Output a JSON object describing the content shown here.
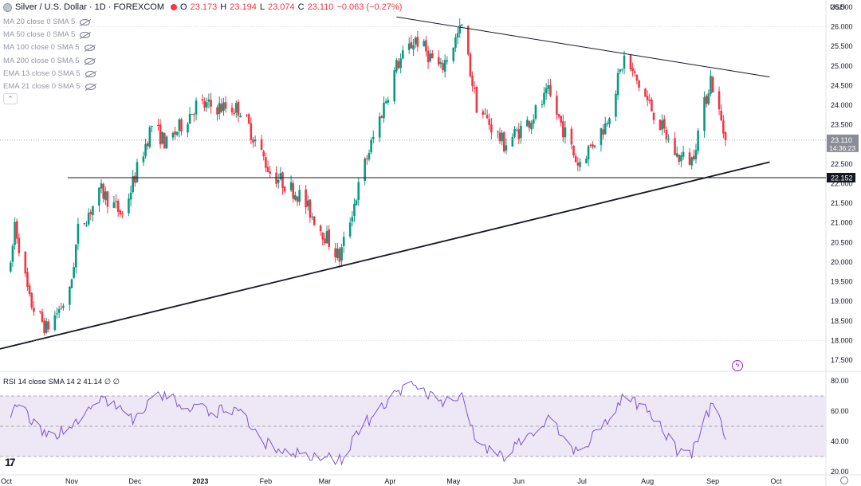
{
  "header": {
    "symbol": "Silver / U.S. Dollar · 1D · FOREXCOM",
    "open_key": "O",
    "open": "23.173",
    "high_key": "H",
    "high": "23.194",
    "low_key": "L",
    "low": "23.074",
    "close_key": "C",
    "close": "23.110",
    "change": "−0.063 (−0.27%)"
  },
  "indicators": [
    "MA 20 close 0 SMA 5",
    "MA 50 close 0 SMA 5",
    "MA 100 close 0 SMA 5",
    "MA 200 close 0 SMA 5",
    "EMA 13 close 0 SMA 5",
    "EMA 21 close 0 SMA 5"
  ],
  "rsi_legend": "RSI 14 close SMA 14 2  41.14 ∅ ∅",
  "currency": "USD",
  "collapse_label": "⌃",
  "logo": "17",
  "colors": {
    "up": "#089981",
    "down": "#f23645",
    "rsi_line": "#7e57c2",
    "rsi_band": "#ede7f6",
    "current_price_bg": "#8a8d96",
    "support_bg": "#131722"
  },
  "chart_data": {
    "type": "candlestick",
    "price_axis": {
      "min": 17.5,
      "max": 26.5,
      "ticks": [
        "26.500",
        "26.000",
        "25.500",
        "25.000",
        "24.500",
        "24.000",
        "23.500",
        "23.000",
        "22.500",
        "22.000",
        "21.500",
        "21.000",
        "20.500",
        "20.000",
        "19.500",
        "19.000",
        "18.500",
        "18.000",
        "17.500"
      ]
    },
    "current_price": {
      "value": "23.110",
      "countdown": "14:36:23"
    },
    "support_level": {
      "value": 22.152,
      "label": "22.152"
    },
    "x_axis_labels": [
      "Oct",
      "Nov",
      "Dec",
      "2023",
      "Feb",
      "Mar",
      "Apr",
      "May",
      "Jun",
      "Jul",
      "Aug",
      "Sep",
      "Oct"
    ],
    "trendlines": [
      {
        "name": "resistance",
        "from": [
          "2023-04-04",
          26.25
        ],
        "to": [
          "2023-09-28",
          24.72
        ]
      },
      {
        "name": "rising-support",
        "from": [
          "2022-09-29",
          17.8
        ],
        "to": [
          "2023-09-28",
          22.55
        ]
      }
    ],
    "rsi": {
      "period": 14,
      "axis_ticks": [
        "80.00",
        "60.00",
        "40.00",
        "20.00"
      ],
      "upper_band": 70,
      "middle": 50,
      "lower_band": 30,
      "last": 41.14
    },
    "series_anchors": [
      [
        "2022-10-03",
        19.8
      ],
      [
        "2022-10-05",
        21.0
      ],
      [
        "2022-10-12",
        19.0
      ],
      [
        "2022-10-20",
        18.3
      ],
      [
        "2022-10-31",
        19.2
      ],
      [
        "2022-11-04",
        20.8
      ],
      [
        "2022-11-15",
        21.8
      ],
      [
        "2022-11-25",
        21.2
      ],
      [
        "2022-12-09",
        23.5
      ],
      [
        "2022-12-16",
        23.0
      ],
      [
        "2022-12-30",
        24.0
      ],
      [
        "2023-01-20",
        23.9
      ],
      [
        "2023-02-03",
        22.3
      ],
      [
        "2023-02-17",
        21.7
      ],
      [
        "2023-03-08",
        20.1
      ],
      [
        "2023-03-20",
        22.5
      ],
      [
        "2023-04-04",
        25.0
      ],
      [
        "2023-04-13",
        25.7
      ],
      [
        "2023-04-25",
        24.9
      ],
      [
        "2023-05-05",
        26.0
      ],
      [
        "2023-05-12",
        24.0
      ],
      [
        "2023-05-25",
        23.0
      ],
      [
        "2023-06-06",
        23.6
      ],
      [
        "2023-06-15",
        24.3
      ],
      [
        "2023-06-29",
        22.5
      ],
      [
        "2023-07-12",
        23.5
      ],
      [
        "2023-07-21",
        25.2
      ],
      [
        "2023-08-01",
        24.1
      ],
      [
        "2023-08-15",
        22.7
      ],
      [
        "2023-08-22",
        22.6
      ],
      [
        "2023-08-31",
        24.7
      ],
      [
        "2023-09-07",
        23.11
      ]
    ],
    "rsi_anchors": [
      [
        "2022-10-03",
        60
      ],
      [
        "2022-10-06",
        65
      ],
      [
        "2022-10-20",
        42
      ],
      [
        "2022-11-01",
        50
      ],
      [
        "2022-11-15",
        68
      ],
      [
        "2022-12-01",
        55
      ],
      [
        "2022-12-12",
        70
      ],
      [
        "2022-12-30",
        62
      ],
      [
        "2023-01-20",
        58
      ],
      [
        "2023-02-03",
        36
      ],
      [
        "2023-02-24",
        30
      ],
      [
        "2023-03-08",
        27
      ],
      [
        "2023-03-20",
        52
      ],
      [
        "2023-04-05",
        72
      ],
      [
        "2023-04-14",
        77
      ],
      [
        "2023-04-26",
        66
      ],
      [
        "2023-05-05",
        70
      ],
      [
        "2023-05-12",
        40
      ],
      [
        "2023-05-26",
        30
      ],
      [
        "2023-06-06",
        45
      ],
      [
        "2023-06-15",
        55
      ],
      [
        "2023-06-29",
        32
      ],
      [
        "2023-07-12",
        52
      ],
      [
        "2023-07-21",
        70
      ],
      [
        "2023-08-01",
        60
      ],
      [
        "2023-08-15",
        35
      ],
      [
        "2023-08-22",
        33
      ],
      [
        "2023-09-01",
        67
      ],
      [
        "2023-09-07",
        41.14
      ]
    ],
    "seed": 7
  }
}
